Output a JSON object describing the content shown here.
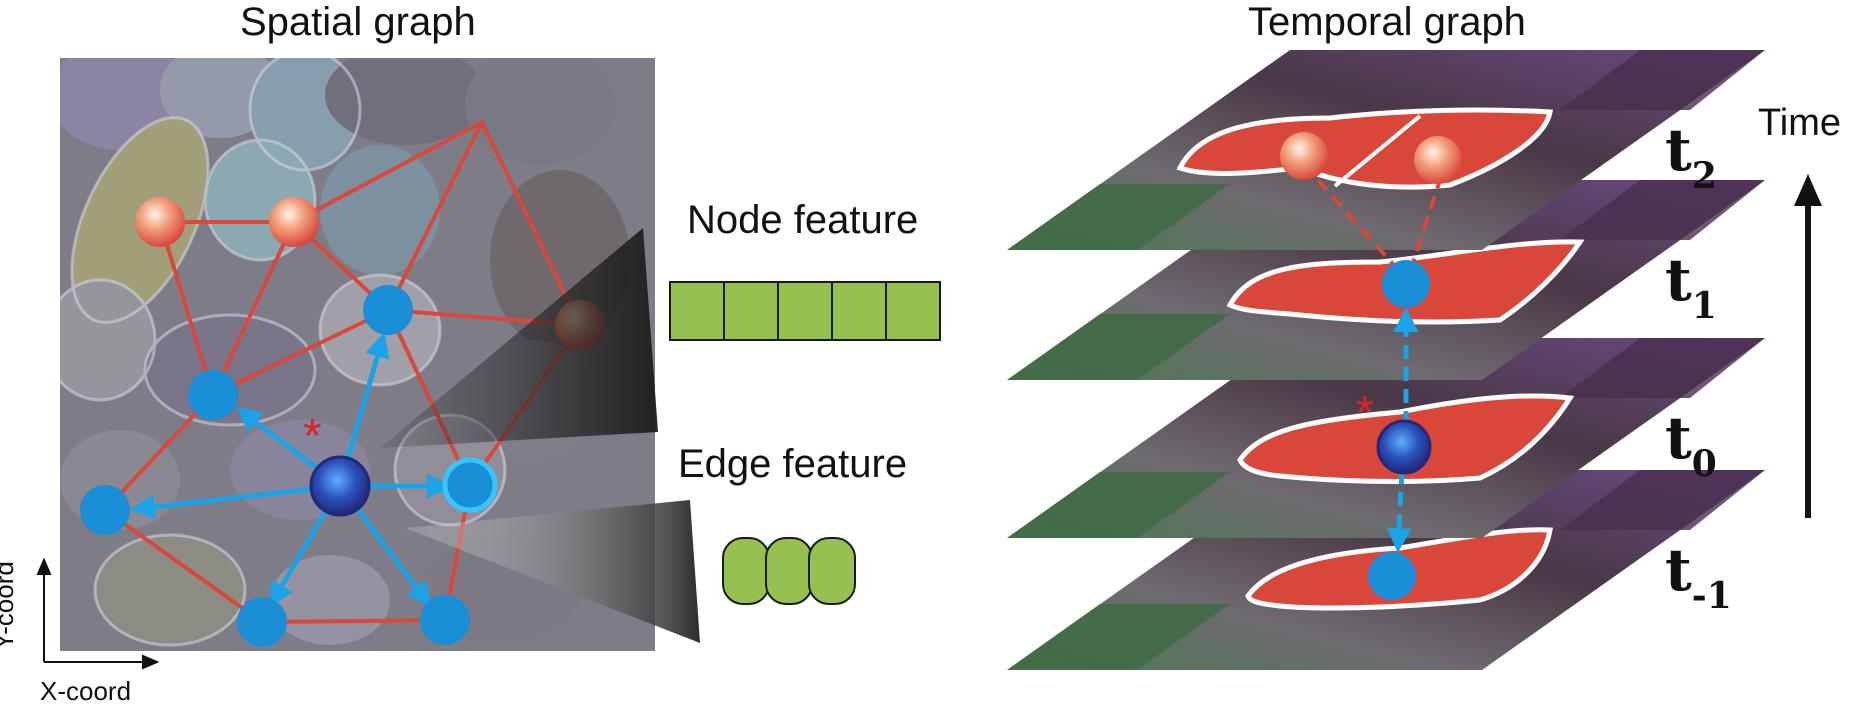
{
  "titles": {
    "spatial": "Spatial graph",
    "temporal": "Temporal graph"
  },
  "labels": {
    "node_feature": "Node feature",
    "edge_feature": "Edge feature",
    "x_axis": "X-coord",
    "y_axis": "Y-coord",
    "time": "Time",
    "target_marker": "*"
  },
  "time_layers": [
    {
      "base": "t",
      "sub": "2"
    },
    {
      "base": "t",
      "sub": "1"
    },
    {
      "base": "t",
      "sub": "0"
    },
    {
      "base": "t",
      "sub": "-1"
    }
  ],
  "node_feature_cells": 5,
  "edge_feature_cells": 3,
  "colors": {
    "edge_red": "#d9483b",
    "edge_blue": "#1aa3e6",
    "node_blue": "#1a8ed6",
    "center_node": "#2a2f8f",
    "cell_red": "#d9473a",
    "feature_green": "#96c050",
    "marker_red": "#d8242a"
  }
}
